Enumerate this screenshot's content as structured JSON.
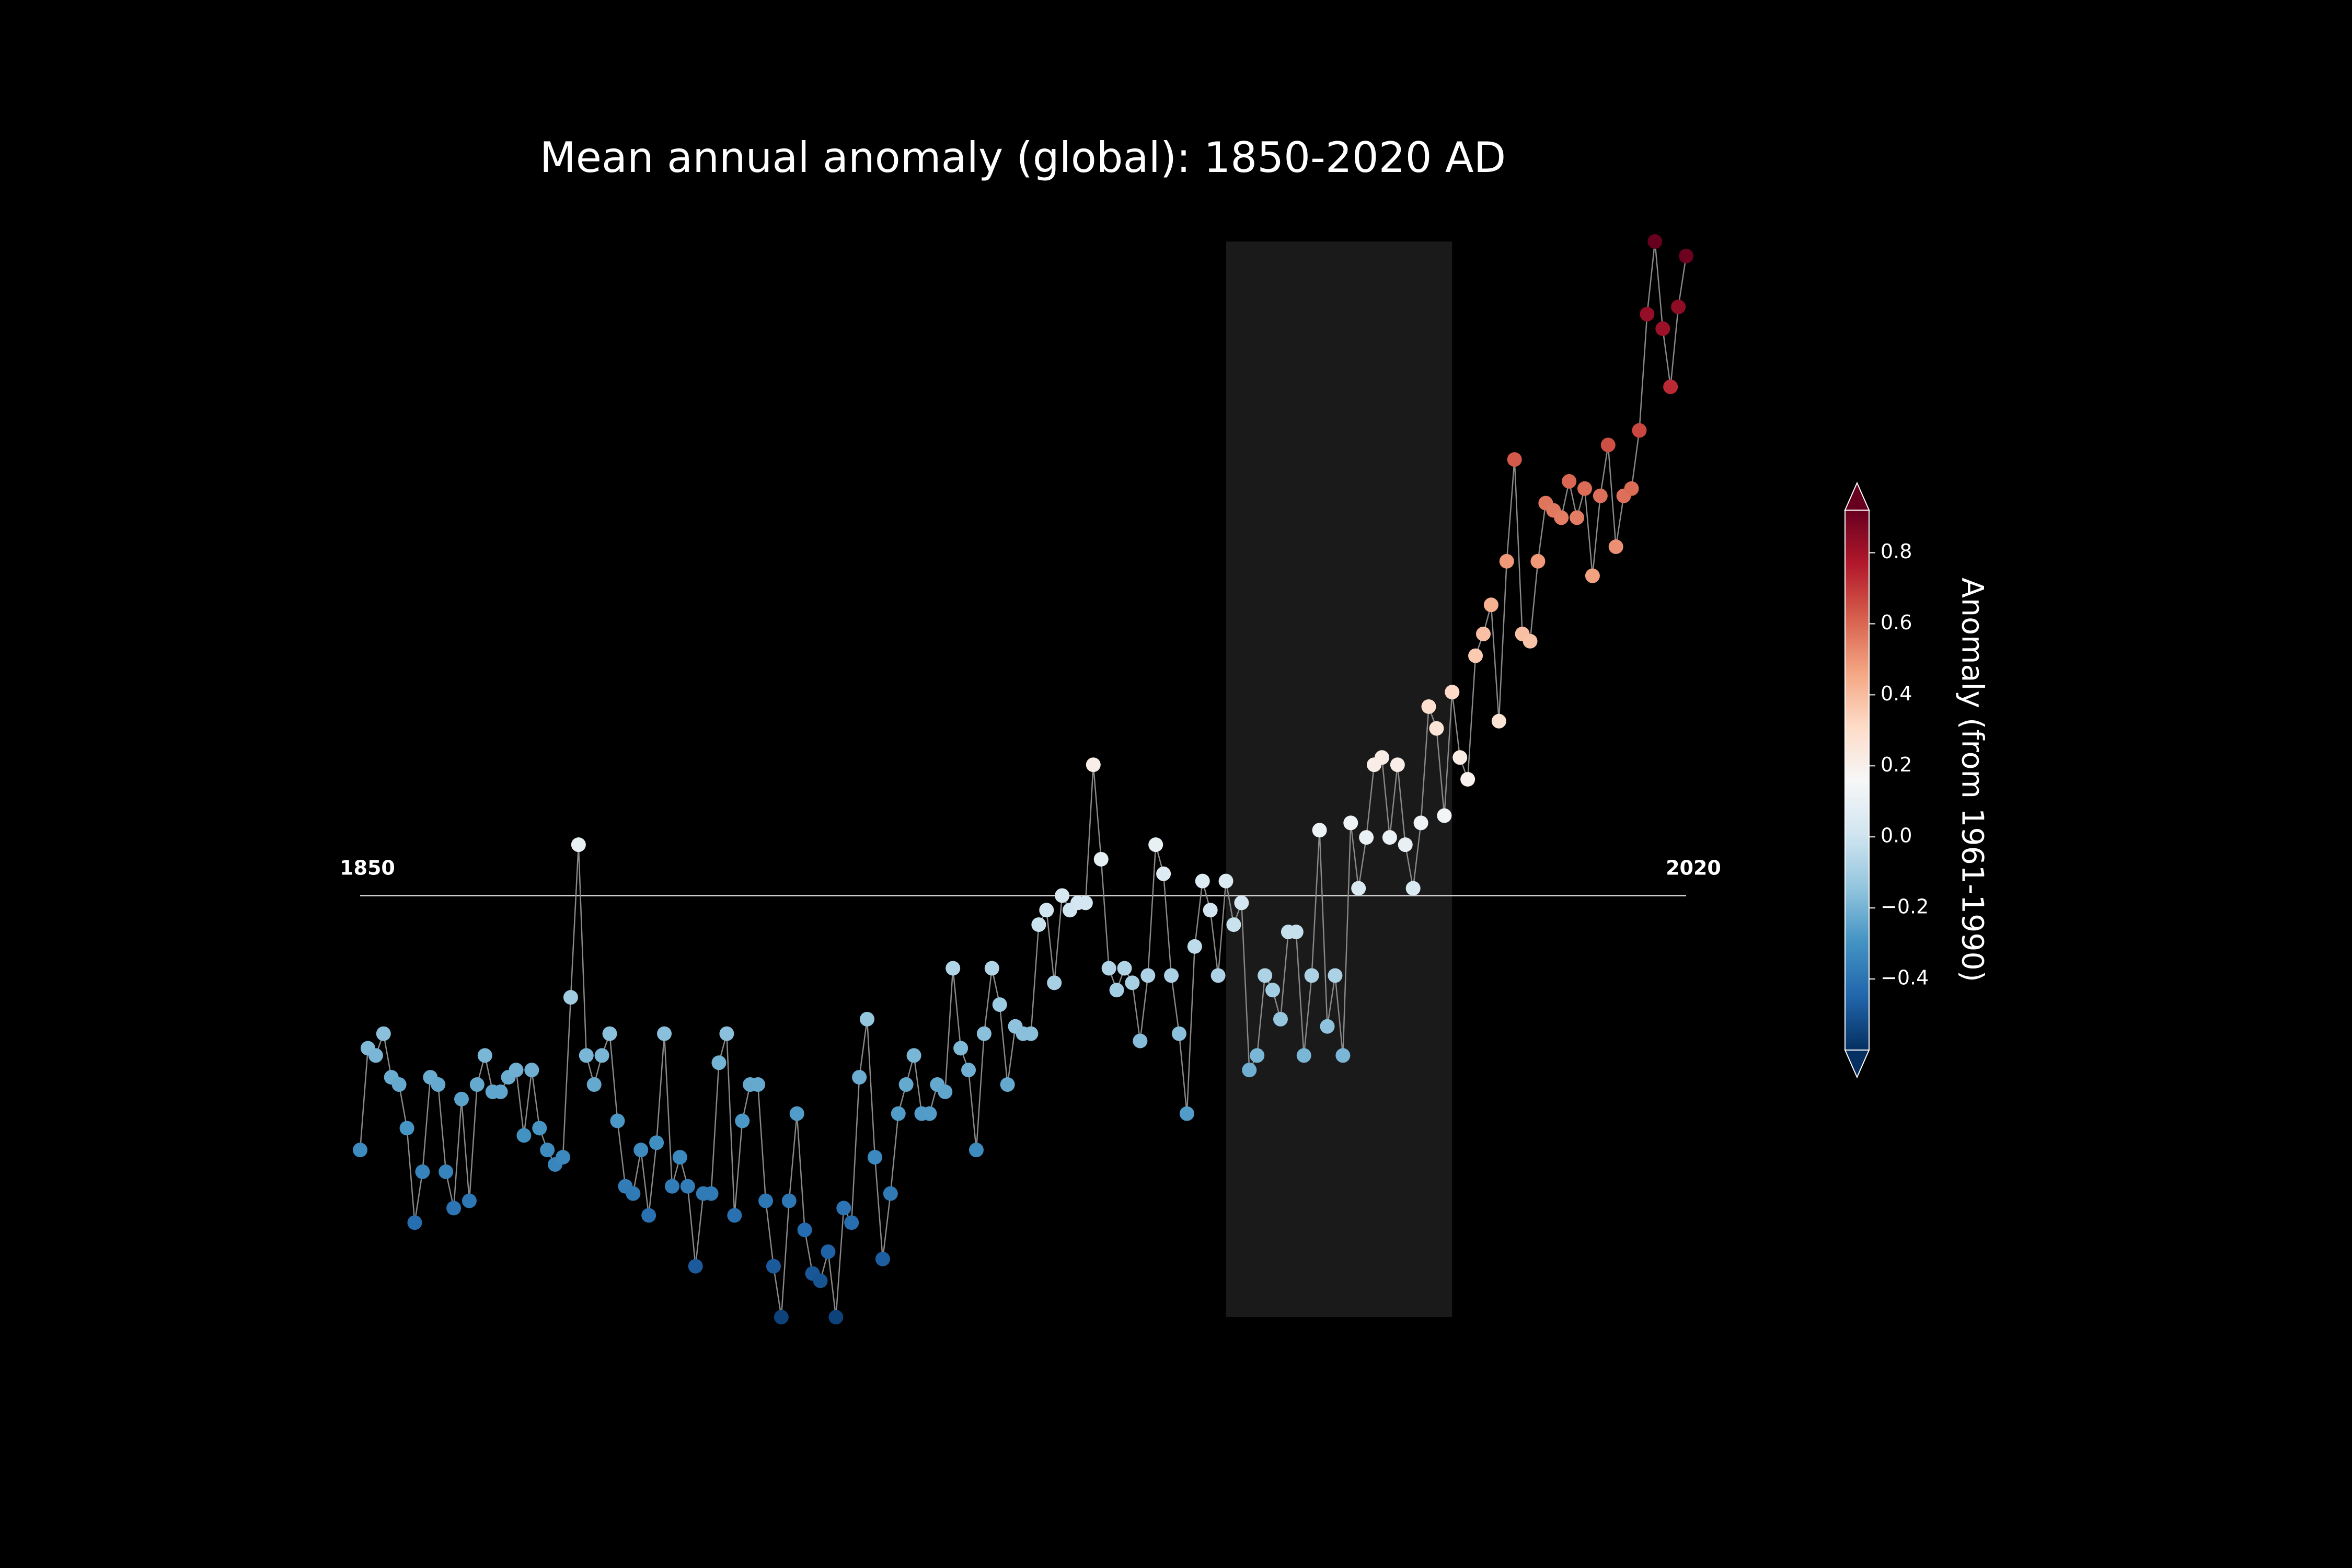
{
  "chart_data": {
    "type": "scatter",
    "title": "Mean annual anomaly (global): 1850-2020 AD",
    "x": [
      1850,
      1851,
      1852,
      1853,
      1854,
      1855,
      1856,
      1857,
      1858,
      1859,
      1860,
      1861,
      1862,
      1863,
      1864,
      1865,
      1866,
      1867,
      1868,
      1869,
      1870,
      1871,
      1872,
      1873,
      1874,
      1875,
      1876,
      1877,
      1878,
      1879,
      1880,
      1881,
      1882,
      1883,
      1884,
      1885,
      1886,
      1887,
      1888,
      1889,
      1890,
      1891,
      1892,
      1893,
      1894,
      1895,
      1896,
      1897,
      1898,
      1899,
      1900,
      1901,
      1902,
      1903,
      1904,
      1905,
      1906,
      1907,
      1908,
      1909,
      1910,
      1911,
      1912,
      1913,
      1914,
      1915,
      1916,
      1917,
      1918,
      1919,
      1920,
      1921,
      1922,
      1923,
      1924,
      1925,
      1926,
      1927,
      1928,
      1929,
      1930,
      1931,
      1932,
      1933,
      1934,
      1935,
      1936,
      1937,
      1938,
      1939,
      1940,
      1941,
      1942,
      1943,
      1944,
      1945,
      1946,
      1947,
      1948,
      1949,
      1950,
      1951,
      1952,
      1953,
      1954,
      1955,
      1956,
      1957,
      1958,
      1959,
      1960,
      1961,
      1962,
      1963,
      1964,
      1965,
      1966,
      1967,
      1968,
      1969,
      1970,
      1971,
      1972,
      1973,
      1974,
      1975,
      1976,
      1977,
      1978,
      1979,
      1980,
      1981,
      1982,
      1983,
      1984,
      1985,
      1986,
      1987,
      1988,
      1989,
      1990,
      1991,
      1992,
      1993,
      1994,
      1995,
      1996,
      1997,
      1998,
      1999,
      2000,
      2001,
      2002,
      2003,
      2004,
      2005,
      2006,
      2007,
      2008,
      2009,
      2010,
      2011,
      2012,
      2013,
      2014,
      2015,
      2016,
      2017,
      2018,
      2019,
      2020
    ],
    "values": [
      -0.32,
      -0.18,
      -0.19,
      -0.16,
      -0.22,
      -0.23,
      -0.29,
      -0.42,
      -0.35,
      -0.22,
      -0.23,
      -0.35,
      -0.4,
      -0.25,
      -0.39,
      -0.23,
      -0.19,
      -0.24,
      -0.24,
      -0.22,
      -0.21,
      -0.3,
      -0.21,
      -0.29,
      -0.32,
      -0.34,
      -0.33,
      -0.11,
      0.1,
      -0.19,
      -0.23,
      -0.19,
      -0.16,
      -0.28,
      -0.37,
      -0.38,
      -0.32,
      -0.41,
      -0.31,
      -0.16,
      -0.37,
      -0.33,
      -0.37,
      -0.48,
      -0.38,
      -0.38,
      -0.2,
      -0.16,
      -0.41,
      -0.28,
      -0.23,
      -0.23,
      -0.39,
      -0.48,
      -0.55,
      -0.39,
      -0.27,
      -0.43,
      -0.49,
      -0.5,
      -0.46,
      -0.55,
      -0.4,
      -0.42,
      -0.22,
      -0.14,
      -0.33,
      -0.47,
      -0.38,
      -0.27,
      -0.23,
      -0.19,
      -0.27,
      -0.27,
      -0.23,
      -0.24,
      -0.07,
      -0.18,
      -0.21,
      -0.32,
      -0.16,
      -0.07,
      -0.12,
      -0.23,
      -0.15,
      -0.16,
      -0.16,
      -0.01,
      0.01,
      -0.09,
      0.03,
      0.01,
      0.02,
      0.02,
      0.21,
      0.08,
      -0.07,
      -0.1,
      -0.07,
      -0.09,
      -0.17,
      -0.08,
      0.1,
      0.06,
      -0.08,
      -0.16,
      -0.27,
      -0.04,
      0.05,
      0.01,
      -0.08,
      0.05,
      -0.01,
      0.02,
      -0.21,
      -0.19,
      -0.08,
      -0.1,
      -0.14,
      -0.02,
      -0.02,
      -0.19,
      -0.08,
      0.12,
      -0.15,
      -0.08,
      -0.19,
      0.13,
      0.04,
      0.11,
      0.21,
      0.22,
      0.11,
      0.21,
      0.1,
      0.04,
      0.13,
      0.29,
      0.26,
      0.14,
      0.31,
      0.22,
      0.19,
      0.36,
      0.39,
      0.43,
      0.27,
      0.49,
      0.63,
      0.39,
      0.38,
      0.49,
      0.57,
      0.56,
      0.55,
      0.6,
      0.55,
      0.59,
      0.47,
      0.58,
      0.65,
      0.51,
      0.58,
      0.59,
      0.67,
      0.83,
      0.93,
      0.81,
      0.73,
      0.84,
      0.91
    ],
    "xlim": [
      1850,
      2020
    ],
    "ylim": [
      -0.55,
      0.93
    ],
    "hline": 0.03,
    "highlight": [
      1961,
      1990
    ],
    "line_color": "#888888",
    "cmap": "RdBu_r",
    "colorbar": {
      "label": "Anomaly (from 1961-1990)",
      "clim": [
        -0.6,
        0.92
      ],
      "ticks": [
        {
          "value": -0.4,
          "label": "−0.4"
        },
        {
          "value": -0.2,
          "label": "−0.2"
        },
        {
          "value": 0,
          "label": "0.0"
        },
        0.2,
        0.4,
        0.6,
        0.8
      ]
    }
  }
}
